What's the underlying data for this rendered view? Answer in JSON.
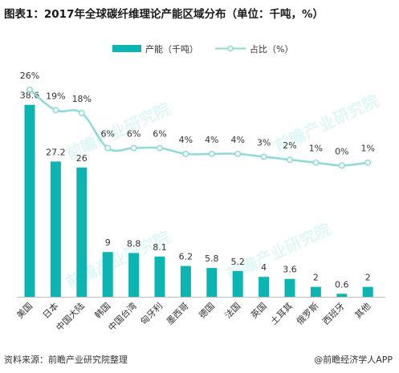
{
  "title": "图表1：2017年全球碳纤维理论产能区域分布（单位：千吨，%）",
  "watermark": "前瞻产业研究院",
  "footer": {
    "source": "资料来源：前瞻产业研究院整理",
    "credit": "@前瞻经济学人APP"
  },
  "colors": {
    "bar": "#0cb5b2",
    "line": "#8fd9d6",
    "point_fill": "#ffffff",
    "text": "#333333"
  },
  "chart_data": {
    "type": "bar",
    "title": "图表1：2017年全球碳纤维理论产能区域分布（单位：千吨，%）",
    "categories": [
      "美国",
      "日本",
      "中国大陆",
      "韩国",
      "中国台湾",
      "匈牙利",
      "墨西哥",
      "德国",
      "法国",
      "英国",
      "土耳其",
      "俄罗斯",
      "西班牙",
      "其他"
    ],
    "series": [
      {
        "name": "产能（千吨）",
        "type": "bar",
        "values": [
          38.6,
          27.2,
          26,
          9,
          8.8,
          8.1,
          6.2,
          5.8,
          5.2,
          4,
          3.6,
          2,
          0.6,
          2
        ],
        "labels": [
          "38.6",
          "27.2",
          "26",
          "9",
          "8.8",
          "8.1",
          "6.2",
          "5.8",
          "5.2",
          "4",
          "3.6",
          "2",
          "0.6",
          "2"
        ]
      },
      {
        "name": "占比（%）",
        "type": "line",
        "values": [
          26,
          19,
          18,
          6,
          6,
          6,
          4,
          4,
          4,
          3,
          2,
          1,
          0,
          1
        ],
        "labels": [
          "26%",
          "19%",
          "18%",
          "6%",
          "6%",
          "6%",
          "4%",
          "4%",
          "4%",
          "3%",
          "2%",
          "1%",
          "0%",
          "1%"
        ]
      }
    ],
    "ylim_bar": [
      0,
      45
    ],
    "ylim_line": [
      -23,
      32
    ],
    "grid": false,
    "legend_position": "top-center"
  }
}
